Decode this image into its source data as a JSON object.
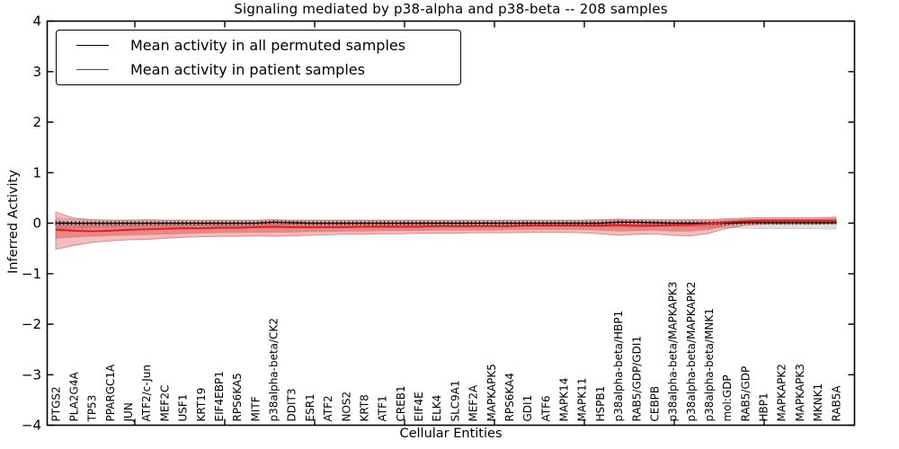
{
  "chart_data": {
    "type": "line",
    "title": "Signaling mediated by p38-alpha and p38-beta -- 208 samples",
    "xlabel": "Cellular Entities",
    "ylabel": "Inferred Activity",
    "ylim": [
      -4,
      4
    ],
    "yticks": [
      4,
      3,
      2,
      1,
      0,
      -1,
      -2,
      -3,
      -4
    ],
    "ytick_labels": [
      "4",
      "3",
      "2",
      "1",
      "0",
      "−1",
      "−2",
      "−3",
      "−4"
    ],
    "grid": false,
    "legend_position": "upper left",
    "categories": [
      "PTGS2",
      "PLA2G4A",
      "TP53",
      "PPARGC1A",
      "JUN",
      "ATF2/c-Jun",
      "MEF2C",
      "USF1",
      "KRT19",
      "EIF4EBP1",
      "RPS6KA5",
      "MITF",
      "p38alpha-beta/CK2",
      "DDIT3",
      "ESR1",
      "ATF2",
      "NOS2",
      "KRT8",
      "ATF1",
      "CREB1",
      "EIF4E",
      "ELK4",
      "SLC9A1",
      "MEF2A",
      "MAPKAPK5",
      "RPS6KA4",
      "GDI1",
      "ATF6",
      "MAPK14",
      "MAPK11",
      "HSPB1",
      "p38alpha-beta/HBP1",
      "RAB5/GDP/GDI1",
      "CEBPB",
      "p38alpha-beta/MAPKAPK3",
      "p38alpha-beta/MAPKAPK2",
      "p38alpha-beta/MNK1",
      "mol:GDP",
      "RAB5/GDP",
      "HBP1",
      "MAPKAPK2",
      "MAPKAPK3",
      "MKNK1",
      "RAB5A"
    ],
    "series": [
      {
        "name": "Mean activity in all permuted samples",
        "color": "#000000",
        "values": [
          0,
          0,
          0,
          0,
          0,
          0,
          0,
          0,
          0,
          0,
          0,
          0,
          0.02,
          0.01,
          0,
          0,
          0,
          0,
          0,
          0,
          0,
          0,
          0,
          0,
          0,
          0,
          0,
          0,
          0,
          0,
          0,
          0.02,
          0.02,
          0.01,
          0,
          0,
          0,
          0,
          0.01,
          0.01,
          0.01,
          0.01,
          0.01,
          0.01
        ],
        "band": {
          "top": [
            0.1,
            0.08,
            0.07,
            0.06,
            0.06,
            0.06,
            0.06,
            0.06,
            0.05,
            0.05,
            0.05,
            0.05,
            0.06,
            0.05,
            0.05,
            0.05,
            0.05,
            0.05,
            0.05,
            0.05,
            0.05,
            0.05,
            0.05,
            0.05,
            0.05,
            0.05,
            0.05,
            0.05,
            0.05,
            0.05,
            0.06,
            0.07,
            0.07,
            0.06,
            0.06,
            0.06,
            0.06,
            0.07,
            0.08,
            0.08,
            0.08,
            0.08,
            0.08,
            0.09
          ],
          "bottom": [
            -0.12,
            -0.1,
            -0.09,
            -0.08,
            -0.08,
            -0.07,
            -0.07,
            -0.07,
            -0.06,
            -0.06,
            -0.06,
            -0.06,
            -0.07,
            -0.06,
            -0.06,
            -0.06,
            -0.06,
            -0.06,
            -0.06,
            -0.06,
            -0.06,
            -0.06,
            -0.06,
            -0.06,
            -0.06,
            -0.06,
            -0.06,
            -0.06,
            -0.06,
            -0.06,
            -0.07,
            -0.08,
            -0.08,
            -0.07,
            -0.07,
            -0.07,
            -0.08,
            -0.09,
            -0.1,
            -0.11,
            -0.11,
            -0.11,
            -0.11,
            -0.12
          ],
          "fill": "#bfbfbf"
        }
      },
      {
        "name": "Mean activity in patient samples",
        "color": "#ff0000",
        "values": [
          -0.13,
          -0.15,
          -0.16,
          -0.15,
          -0.13,
          -0.12,
          -0.11,
          -0.1,
          -0.1,
          -0.09,
          -0.09,
          -0.08,
          -0.07,
          -0.08,
          -0.08,
          -0.08,
          -0.08,
          -0.07,
          -0.07,
          -0.07,
          -0.07,
          -0.06,
          -0.06,
          -0.06,
          -0.06,
          -0.06,
          -0.05,
          -0.05,
          -0.05,
          -0.05,
          -0.05,
          -0.04,
          -0.05,
          -0.05,
          -0.04,
          -0.03,
          -0.01,
          0.02,
          0.04,
          0.05,
          0.05,
          0.05,
          0.05,
          0.05
        ],
        "band_outer": {
          "top": [
            0.22,
            0.1,
            0.07,
            0.06,
            0.06,
            0.07,
            0.06,
            0.06,
            0.06,
            0.06,
            0.06,
            0.06,
            0.07,
            0.06,
            0.06,
            0.06,
            0.06,
            0.06,
            0.06,
            0.06,
            0.06,
            0.06,
            0.06,
            0.06,
            0.06,
            0.06,
            0.06,
            0.06,
            0.06,
            0.06,
            0.07,
            0.08,
            0.07,
            0.07,
            0.07,
            0.07,
            0.07,
            0.09,
            0.1,
            0.11,
            0.11,
            0.11,
            0.11,
            0.12
          ],
          "bottom": [
            -0.52,
            -0.44,
            -0.38,
            -0.35,
            -0.33,
            -0.32,
            -0.3,
            -0.28,
            -0.27,
            -0.26,
            -0.26,
            -0.25,
            -0.26,
            -0.25,
            -0.24,
            -0.23,
            -0.22,
            -0.22,
            -0.21,
            -0.21,
            -0.2,
            -0.2,
            -0.2,
            -0.19,
            -0.19,
            -0.19,
            -0.18,
            -0.18,
            -0.18,
            -0.19,
            -0.21,
            -0.24,
            -0.22,
            -0.21,
            -0.24,
            -0.25,
            -0.2,
            -0.1,
            -0.04,
            -0.02,
            -0.02,
            -0.02,
            -0.02,
            -0.01
          ],
          "fill": "#e23b3b"
        },
        "band_inner": {
          "top": [
            0.05,
            0.01,
            0,
            0,
            0,
            0,
            0,
            0,
            0,
            0,
            0,
            0,
            0.01,
            0,
            0,
            0,
            0,
            0,
            0,
            0,
            0,
            0,
            0,
            0,
            0,
            0,
            0,
            0,
            0,
            0,
            0.01,
            0.02,
            0.01,
            0.01,
            0.01,
            0.01,
            0.02,
            0.05,
            0.07,
            0.08,
            0.08,
            0.08,
            0.08,
            0.09
          ],
          "bottom": [
            -0.3,
            -0.28,
            -0.26,
            -0.25,
            -0.24,
            -0.23,
            -0.22,
            -0.21,
            -0.2,
            -0.19,
            -0.19,
            -0.18,
            -0.18,
            -0.18,
            -0.17,
            -0.17,
            -0.16,
            -0.16,
            -0.15,
            -0.15,
            -0.15,
            -0.14,
            -0.14,
            -0.14,
            -0.14,
            -0.13,
            -0.13,
            -0.13,
            -0.13,
            -0.13,
            -0.14,
            -0.16,
            -0.15,
            -0.14,
            -0.16,
            -0.16,
            -0.13,
            -0.05,
            0,
            0.01,
            0.01,
            0.01,
            0.01,
            0.02
          ],
          "fill": "#cf2f2f"
        }
      }
    ]
  }
}
